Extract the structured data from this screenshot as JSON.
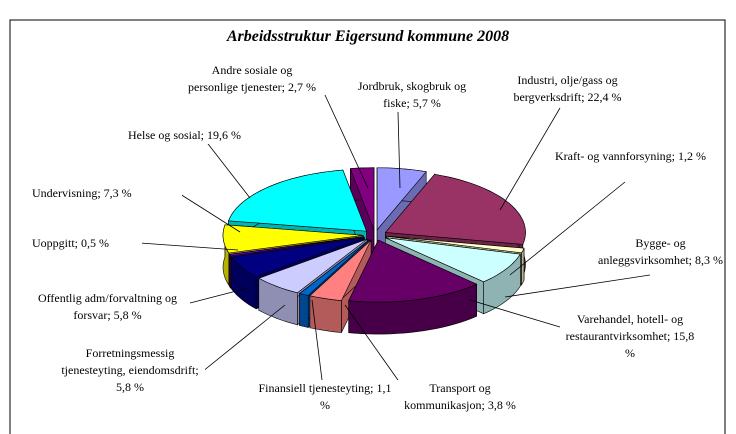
{
  "chart_data": {
    "type": "pie3d",
    "title": "Arbeidsstruktur Eigersund kommune 2008",
    "labels": [
      "Jordbruk, skogbruk og fiske; 5,7 %",
      "Industri, olje/gass og bergverksdrift; 22,4 %",
      "Kraft- og vannforsyning; 1,2 %",
      "Bygge- og anleggsvirksomhet; 8,3 %",
      "Varehandel, hotell- og restaurantvirksomhet; 15,8 %",
      "Transport og kommunikasjon; 3,8 %",
      "Finansiell tjenesteyting; 1,1 %",
      "Forretningsmessig tjenesteyting, eiendomsdrift; 5,8 %",
      "Offentlig adm/forvaltning og forsvar; 5,8 %",
      "Uoppgitt; 0,5 %",
      "Undervisning; 7,3 %",
      "Helse og sosial; 19,6 %",
      "Andre sosiale og personlige tjenester; 2,7 %"
    ],
    "values": [
      5.7,
      22.4,
      1.2,
      8.3,
      15.8,
      3.8,
      1.1,
      5.8,
      5.8,
      0.5,
      7.3,
      19.6,
      2.7
    ],
    "colors": [
      "#9999ff",
      "#993366",
      "#ffffcc",
      "#ccffff",
      "#660066",
      "#ff8080",
      "#0066cc",
      "#ccccff",
      "#000080",
      "#6600cc",
      "#ffff00",
      "#00ffff",
      "#800080"
    ]
  }
}
